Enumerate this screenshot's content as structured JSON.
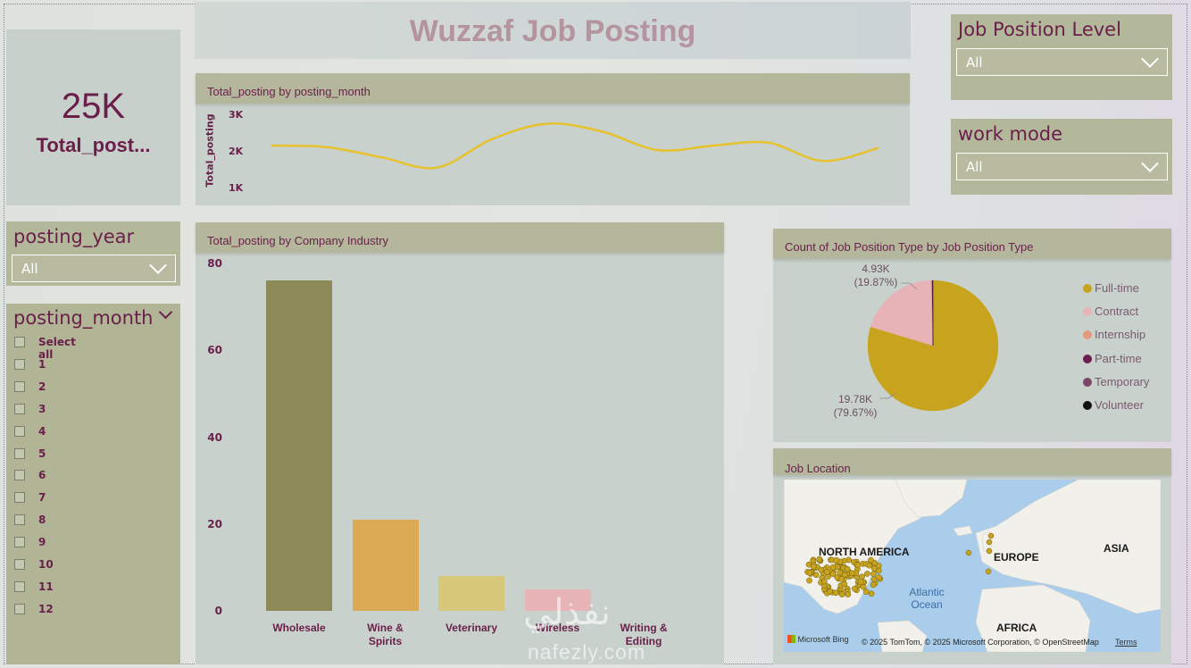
{
  "colors": {
    "maroon": "#6a1f4a",
    "card_sage": "#b3b89b",
    "card_pale": "#c9d1cc",
    "line": "#e6c22c",
    "fulltime": "#c8a41e",
    "contract": "#e1aeb3"
  },
  "header": {
    "title": "Wuzzaf Job Posting"
  },
  "kpi": {
    "value": "25K",
    "label": "Total_post..."
  },
  "filters": {
    "job_position_level": {
      "title": "Job Position Level",
      "value": "All"
    },
    "work_mode": {
      "title": "work mode",
      "value": "All"
    },
    "posting_year": {
      "title": "posting_year",
      "value": "All"
    },
    "posting_month": {
      "title": "posting_month",
      "select_all": "Select all",
      "items": [
        "1",
        "2",
        "3",
        "4",
        "5",
        "6",
        "7",
        "8",
        "9",
        "10",
        "11",
        "12"
      ]
    }
  },
  "icons": {
    "dropdown": "chevron-down-icon",
    "checkbox": "checkbox-icon"
  },
  "line_chart": {
    "title": "Total_posting by posting_month",
    "ylabel": "Total_posting",
    "yticks": [
      "3K",
      "2K",
      "1K"
    ]
  },
  "bar_chart": {
    "title": "Total_posting by Company Industry",
    "yticks": [
      "80",
      "60",
      "40",
      "20",
      "0"
    ],
    "category_lines": [
      [
        "Wholesale"
      ],
      [
        "Wine &",
        "Spirits"
      ],
      [
        "Veterinary"
      ],
      [
        "Wireless"
      ],
      [
        "Writing &",
        "Editing"
      ]
    ]
  },
  "pie_chart": {
    "title": "Count of Job Position Type by Job Position Type",
    "labels": {
      "contract_value": "4.93K",
      "contract_pct": "(19.87%)",
      "fulltime_value": "19.78K",
      "fulltime_pct": "(79.67%)"
    },
    "legend": [
      {
        "name": "Full-time",
        "color": "#c8a41e"
      },
      {
        "name": "Contract",
        "color": "#e7b3b7"
      },
      {
        "name": "Internship",
        "color": "#e59a7f"
      },
      {
        "name": "Part-time",
        "color": "#6e1d52"
      },
      {
        "name": "Temporary",
        "color": "#7a4668"
      },
      {
        "name": "Volunteer",
        "color": "#111111"
      }
    ]
  },
  "map": {
    "title": "Job Location",
    "labels": [
      "NORTH AMERICA",
      "EUROPE",
      "ASIA",
      "AFRICA"
    ],
    "ocean": [
      "Atlantic",
      "Ocean"
    ],
    "brand": "Microsoft Bing",
    "attribution": "© 2025 TomTom, © 2025 Microsoft Corporation, © OpenStreetMap",
    "terms": "Terms"
  },
  "watermark": {
    "arabic": "نفذلي",
    "latin": "nafezly.com"
  },
  "chart_data": [
    {
      "type": "line",
      "title": "Total_posting by posting_month",
      "ylabel": "Total_posting",
      "xlabel": "",
      "x": [
        1,
        2,
        3,
        4,
        5,
        6,
        7,
        8,
        9,
        10,
        11,
        12
      ],
      "series": [
        {
          "values": [
            2120,
            2080,
            1800,
            1520,
            2300,
            2720,
            2500,
            2000,
            2120,
            2200,
            1700,
            2060
          ]
        }
      ],
      "ylim": [
        1000,
        3000
      ],
      "yticks": [
        "1K",
        "2K",
        "3K"
      ],
      "grid": false
    },
    {
      "type": "bar",
      "title": "Total_posting by Company Industry",
      "categories": [
        "Wholesale",
        "Wine & Spirits",
        "Veterinary",
        "Wireless",
        "Writing & Editing"
      ],
      "values": [
        76,
        21,
        8,
        5,
        0
      ],
      "colors": [
        "#8d8a57",
        "#dcaa55",
        "#d8c97a",
        "#e8b4b8",
        "#c9b0a8"
      ],
      "ylim": [
        0,
        80
      ]
    },
    {
      "type": "pie",
      "title": "Count of Job Position Type by Job Position Type",
      "slices": [
        {
          "name": "Full-time",
          "value": 19780,
          "pct": 79.67
        },
        {
          "name": "Contract",
          "value": 4930,
          "pct": 19.87
        },
        {
          "name": "Internship",
          "value": 60,
          "pct": 0.24
        },
        {
          "name": "Part-time",
          "value": 30,
          "pct": 0.12
        },
        {
          "name": "Temporary",
          "value": 15,
          "pct": 0.06
        },
        {
          "name": "Volunteer",
          "value": 10,
          "pct": 0.04
        }
      ],
      "legend": "right"
    }
  ]
}
